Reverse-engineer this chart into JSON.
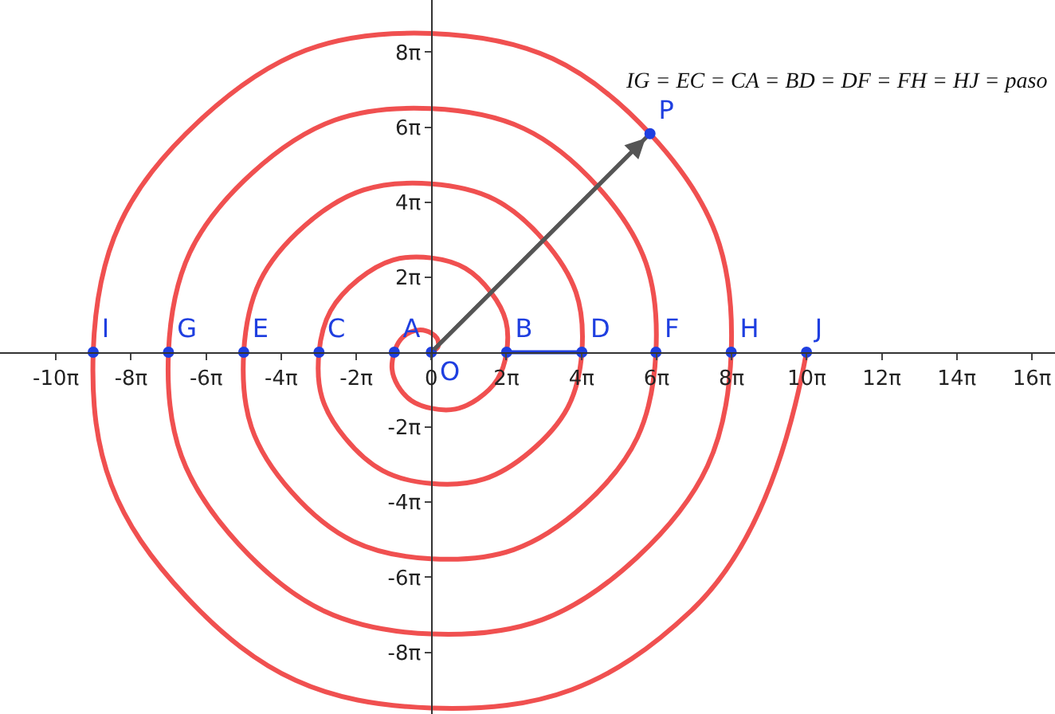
{
  "chart_data": {
    "type": "line",
    "annotations": [
      "IG = EC = CA = BD = DF = FH = HJ = paso"
    ],
    "xlim": [
      -36.1,
      52.2
    ],
    "ylim": [
      -30.3,
      29.5
    ],
    "xticks": [
      {
        "value": -31.42,
        "label": "-10π"
      },
      {
        "value": -25.13,
        "label": "-8π"
      },
      {
        "value": -18.85,
        "label": "-6π"
      },
      {
        "value": -12.57,
        "label": "-4π"
      },
      {
        "value": -6.28,
        "label": "-2π"
      },
      0,
      {
        "value": 6.28,
        "label": "2π"
      },
      {
        "value": 12.57,
        "label": "4π"
      },
      {
        "value": 18.85,
        "label": "6π"
      },
      {
        "value": 25.13,
        "label": "8π"
      },
      {
        "value": 31.42,
        "label": "10π"
      },
      {
        "value": 37.7,
        "label": "12π"
      },
      {
        "value": 43.98,
        "label": "14π"
      },
      {
        "value": 50.27,
        "label": "16π"
      }
    ],
    "yticks": [
      {
        "value": -25.13,
        "label": "-8π"
      },
      {
        "value": -18.85,
        "label": "-6π"
      },
      {
        "value": -12.57,
        "label": "-4π"
      },
      {
        "value": -6.28,
        "label": "-2π"
      },
      {
        "value": 6.28,
        "label": "2π"
      },
      {
        "value": 12.57,
        "label": "4π"
      },
      {
        "value": 18.85,
        "label": "6π"
      },
      {
        "value": 25.13,
        "label": "8π"
      }
    ],
    "series": [
      {
        "color": "#f05050",
        "marker": "none",
        "x": [
          0,
          0.6,
          0,
          -1.7,
          -3.1,
          -2.8,
          0,
          3.9,
          6.3,
          5.0,
          0,
          -6.1,
          -9.4,
          -7.2,
          0,
          8.3,
          12.6,
          9.4,
          0,
          -10.6,
          -15.7,
          -11.7,
          0,
          12.8,
          18.8,
          13.9,
          0,
          -15.0,
          -22.0,
          -16.1,
          0,
          17.2,
          25.1,
          18.3,
          0,
          -19.4,
          -28.3,
          -20.5,
          0,
          21.7,
          31.4
        ],
        "values": [
          0,
          0.6,
          1.6,
          1.7,
          0,
          -2.8,
          -4.7,
          -3.9,
          0,
          5.0,
          7.9,
          6.1,
          0,
          -7.2,
          -11.0,
          -8.3,
          0,
          9.4,
          14.1,
          10.6,
          0,
          -11.7,
          -17.3,
          -12.8,
          0,
          13.9,
          20.4,
          15.0,
          0,
          -16.1,
          -23.6,
          -17.2,
          0,
          18.3,
          26.7,
          19.4,
          0,
          -20.5,
          -29.8,
          -21.7,
          0
        ]
      },
      {
        "color": "#1f3fe0",
        "marker": "none",
        "x": [
          6.3,
          12.6
        ],
        "values": [
          0,
          0
        ]
      },
      {
        "color": "#555555",
        "marker": "none",
        "x": [
          0,
          18.3
        ],
        "values": [
          0,
          18.3
        ]
      },
      {
        "type": "scatter",
        "color": "#1f3fe0",
        "marker": "circle",
        "x": [
          0,
          -3.1,
          6.3,
          -9.4,
          12.6,
          -15.7,
          18.8,
          -22.0,
          25.1,
          -28.3,
          31.4,
          18.3
        ],
        "values": [
          0,
          0,
          0,
          0,
          0,
          0,
          0,
          0,
          0,
          0,
          0,
          18.3
        ],
        "value_labels": [
          "O",
          "A",
          "B",
          "C",
          "D",
          "E",
          "F",
          "G",
          "H",
          "I",
          "J",
          "P"
        ]
      }
    ]
  }
}
